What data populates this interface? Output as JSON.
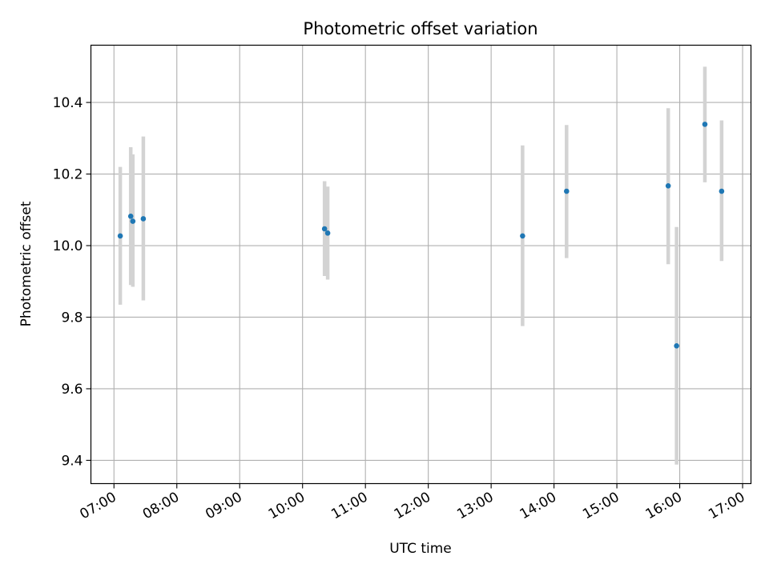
{
  "chart_data": {
    "type": "scatter",
    "title": "Photometric offset variation",
    "xlabel": "UTC time",
    "ylabel": "Photometric offset",
    "x_ticks": [
      "07:00",
      "08:00",
      "09:00",
      "10:00",
      "11:00",
      "12:00",
      "13:00",
      "14:00",
      "15:00",
      "16:00",
      "17:00"
    ],
    "y_ticks": [
      "9.4",
      "9.6",
      "9.8",
      "10.0",
      "10.2",
      "10.4"
    ],
    "xlim": [
      "06:38",
      "17:08"
    ],
    "ylim": [
      9.335,
      10.56
    ],
    "grid": true,
    "colors": {
      "point": "#1f77b4",
      "errorbar": "#d3d3d3",
      "grid": "#b0b0b0"
    },
    "points": [
      {
        "time": "07:06",
        "offset": 10.027,
        "err_low": 9.835,
        "err_high": 10.22
      },
      {
        "time": "07:16",
        "offset": 10.082,
        "err_low": 9.89,
        "err_high": 10.275
      },
      {
        "time": "07:18",
        "offset": 10.068,
        "err_low": 9.885,
        "err_high": 10.255
      },
      {
        "time": "07:28",
        "offset": 10.075,
        "err_low": 9.847,
        "err_high": 10.305
      },
      {
        "time": "10:21",
        "offset": 10.047,
        "err_low": 9.915,
        "err_high": 10.18
      },
      {
        "time": "10:24",
        "offset": 10.035,
        "err_low": 9.905,
        "err_high": 10.165
      },
      {
        "time": "13:30",
        "offset": 10.027,
        "err_low": 9.775,
        "err_high": 10.28
      },
      {
        "time": "14:12",
        "offset": 10.152,
        "err_low": 9.965,
        "err_high": 10.337
      },
      {
        "time": "15:49",
        "offset": 10.167,
        "err_low": 9.948,
        "err_high": 10.384
      },
      {
        "time": "15:57",
        "offset": 9.72,
        "err_low": 9.388,
        "err_high": 10.052
      },
      {
        "time": "16:24",
        "offset": 10.339,
        "err_low": 10.177,
        "err_high": 10.5
      },
      {
        "time": "16:40",
        "offset": 10.152,
        "err_low": 9.957,
        "err_high": 10.35
      }
    ]
  }
}
